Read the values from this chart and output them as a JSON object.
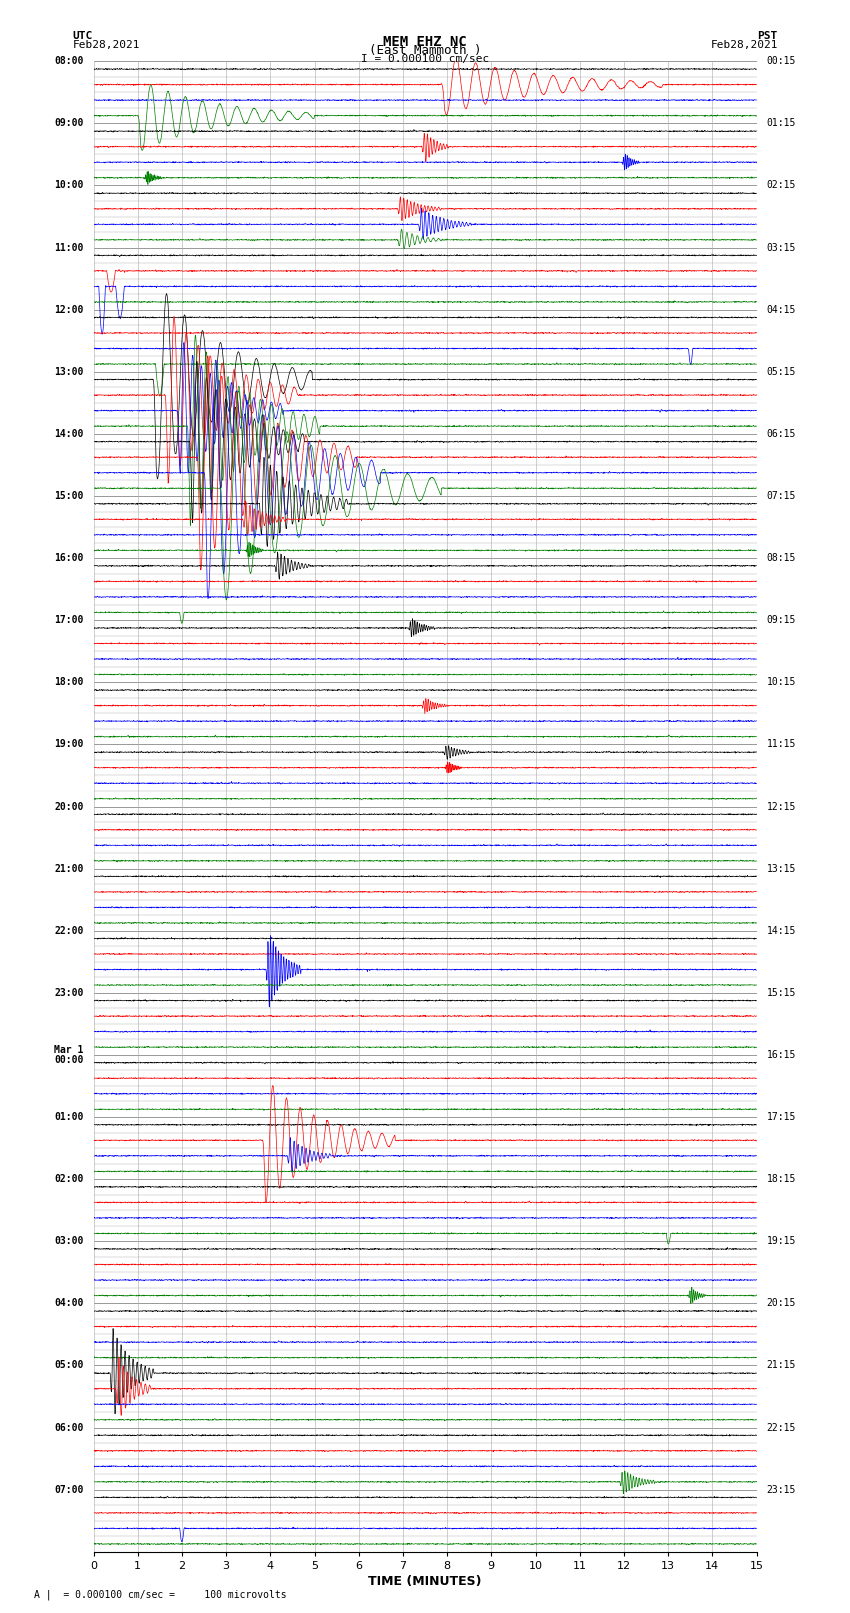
{
  "title_line1": "MEM EHZ NC",
  "title_line2": "(East Mammoth )",
  "scale_label": "I = 0.000100 cm/sec",
  "left_header": "UTC",
  "left_date": "Feb28,2021",
  "right_header": "PST",
  "right_date": "Feb28,2021",
  "bottom_label": "TIME (MINUTES)",
  "footnote": "A |  = 0.000100 cm/sec =     100 microvolts",
  "left_times_major": {
    "0": "08:00",
    "4": "09:00",
    "8": "10:00",
    "12": "11:00",
    "16": "12:00",
    "20": "13:00",
    "24": "14:00",
    "28": "15:00",
    "32": "16:00",
    "36": "17:00",
    "40": "18:00",
    "44": "19:00",
    "48": "20:00",
    "52": "21:00",
    "56": "22:00",
    "60": "23:00",
    "64": "Mar 1\n00:00",
    "68": "01:00",
    "72": "02:00",
    "76": "03:00",
    "80": "04:00",
    "84": "05:00",
    "88": "06:00",
    "92": "07:00"
  },
  "right_times_major": {
    "0": "00:15",
    "4": "01:15",
    "8": "02:15",
    "12": "03:15",
    "16": "04:15",
    "20": "05:15",
    "24": "06:15",
    "28": "07:15",
    "32": "08:15",
    "36": "09:15",
    "40": "10:15",
    "44": "11:15",
    "48": "12:15",
    "52": "13:15",
    "56": "14:15",
    "60": "15:15",
    "64": "16:15",
    "68": "17:15",
    "72": "18:15",
    "76": "19:15",
    "80": "20:15",
    "84": "21:15",
    "88": "22:15",
    "92": "23:15"
  },
  "n_rows": 96,
  "row_colors": [
    "black",
    "red",
    "blue",
    "green"
  ],
  "bg_color": "#ffffff",
  "grid_color": "#aaaaaa",
  "noise_amp": 0.04,
  "spike_scale": 0.38
}
